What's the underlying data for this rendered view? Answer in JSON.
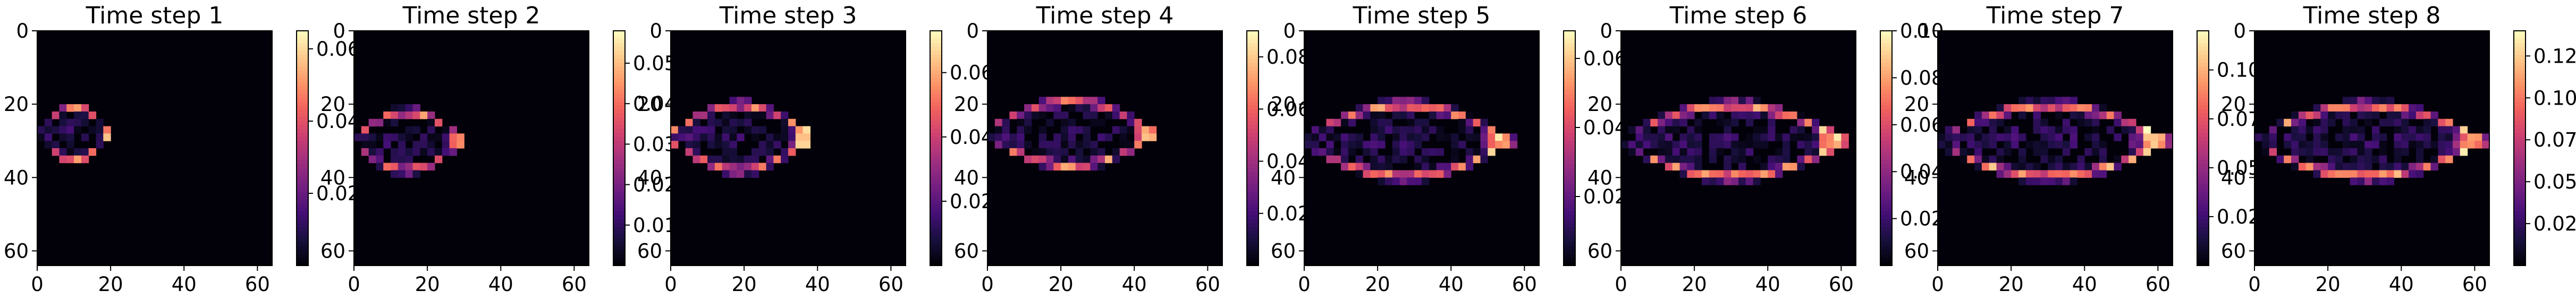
{
  "figure": {
    "colormap": "magma",
    "colormap_stops": [
      "#000004",
      "#180f3d",
      "#440f76",
      "#721f81",
      "#9e2f7f",
      "#cd4071",
      "#f1605d",
      "#fd9668",
      "#feca8d",
      "#fcfdbf"
    ]
  },
  "chart_data": [
    {
      "type": "heatmap",
      "title": "Time step 1",
      "x_ticks": [
        "0",
        "20",
        "40",
        "60"
      ],
      "y_ticks": [
        "0",
        "20",
        "40",
        "60"
      ],
      "xlim": [
        0,
        64
      ],
      "ylim": [
        64,
        0
      ],
      "grid_size": 64,
      "colorbar": {
        "min": 0.0,
        "max": 0.065,
        "ticks": [
          0.02,
          0.04,
          0.06
        ],
        "tick_labels": [
          "0.02",
          "0.04",
          "0.06"
        ]
      },
      "plume": {
        "tip_x": 20,
        "center_y": 28,
        "half_height": 8,
        "peak_value": 0.062
      }
    },
    {
      "type": "heatmap",
      "title": "Time step 2",
      "x_ticks": [
        "0",
        "20",
        "40",
        "60"
      ],
      "y_ticks": [
        "0",
        "20",
        "40",
        "60"
      ],
      "xlim": [
        0,
        64
      ],
      "ylim": [
        64,
        0
      ],
      "grid_size": 64,
      "colorbar": {
        "min": 0.0,
        "max": 0.058,
        "ticks": [
          0.01,
          0.02,
          0.03,
          0.04,
          0.05
        ],
        "tick_labels": [
          "0.01",
          "0.02",
          "0.03",
          "0.04",
          "0.05"
        ]
      },
      "plume": {
        "tip_x": 29,
        "center_y": 30,
        "half_height": 9,
        "peak_value": 0.055
      }
    },
    {
      "type": "heatmap",
      "title": "Time step 3",
      "x_ticks": [
        "0",
        "20",
        "40",
        "60"
      ],
      "y_ticks": [
        "0",
        "20",
        "40",
        "60"
      ],
      "xlim": [
        0,
        64
      ],
      "ylim": [
        64,
        0
      ],
      "grid_size": 64,
      "colorbar": {
        "min": 0.0,
        "max": 0.073,
        "ticks": [
          0.02,
          0.04,
          0.06
        ],
        "tick_labels": [
          "0.02",
          "0.04",
          "0.06"
        ]
      },
      "plume": {
        "tip_x": 37,
        "center_y": 29,
        "half_height": 10,
        "peak_value": 0.068
      }
    },
    {
      "type": "heatmap",
      "title": "Time step 4",
      "x_ticks": [
        "0",
        "20",
        "40",
        "60"
      ],
      "y_ticks": [
        "0",
        "20",
        "40",
        "60"
      ],
      "xlim": [
        0,
        64
      ],
      "ylim": [
        64,
        0
      ],
      "grid_size": 64,
      "colorbar": {
        "min": 0.0,
        "max": 0.09,
        "ticks": [
          0.02,
          0.04,
          0.06,
          0.08
        ],
        "tick_labels": [
          "0.02",
          "0.04",
          "0.06",
          "0.08"
        ]
      },
      "plume": {
        "tip_x": 45,
        "center_y": 28,
        "half_height": 10,
        "peak_value": 0.085
      }
    },
    {
      "type": "heatmap",
      "title": "Time step 5",
      "x_ticks": [
        "0",
        "20",
        "40",
        "60"
      ],
      "y_ticks": [
        "0",
        "20",
        "40",
        "60"
      ],
      "xlim": [
        0,
        64
      ],
      "ylim": [
        64,
        0
      ],
      "grid_size": 64,
      "colorbar": {
        "min": 0.0,
        "max": 0.068,
        "ticks": [
          0.02,
          0.04,
          0.06
        ],
        "tick_labels": [
          "0.02",
          "0.04",
          "0.06"
        ]
      },
      "plume": {
        "tip_x": 55,
        "center_y": 30,
        "half_height": 11,
        "peak_value": 0.065
      }
    },
    {
      "type": "heatmap",
      "title": "Time step 6",
      "x_ticks": [
        "0",
        "20",
        "40",
        "60"
      ],
      "y_ticks": [
        "0",
        "20",
        "40",
        "60"
      ],
      "xlim": [
        0,
        64
      ],
      "ylim": [
        64,
        0
      ],
      "grid_size": 64,
      "colorbar": {
        "min": 0.0,
        "max": 0.1,
        "ticks": [
          0.02,
          0.04,
          0.06,
          0.08,
          0.1
        ],
        "tick_labels": [
          "0.02",
          "0.04",
          "0.06",
          "0.08",
          "0.10"
        ]
      },
      "plume": {
        "tip_x": 60,
        "center_y": 30,
        "half_height": 11,
        "peak_value": 0.1
      }
    },
    {
      "type": "heatmap",
      "title": "Time step 7",
      "x_ticks": [
        "0",
        "20",
        "40",
        "60"
      ],
      "y_ticks": [
        "0",
        "20",
        "40",
        "60"
      ],
      "xlim": [
        0,
        64
      ],
      "ylim": [
        64,
        0
      ],
      "grid_size": 64,
      "colorbar": {
        "min": 0.0,
        "max": 0.12,
        "ticks": [
          0.025,
          0.05,
          0.075,
          0.1
        ],
        "tick_labels": [
          "0.025",
          "0.050",
          "0.075",
          "0.100"
        ]
      },
      "plume": {
        "tip_x": 61,
        "center_y": 30,
        "half_height": 11,
        "peak_value": 0.12
      }
    },
    {
      "type": "heatmap",
      "title": "Time step 8",
      "x_ticks": [
        "0",
        "20",
        "40",
        "60"
      ],
      "y_ticks": [
        "0",
        "20",
        "40",
        "60"
      ],
      "xlim": [
        0,
        64
      ],
      "ylim": [
        64,
        0
      ],
      "grid_size": 64,
      "colorbar": {
        "min": 0.0,
        "max": 0.14,
        "ticks": [
          0.025,
          0.05,
          0.075,
          0.1,
          0.125
        ],
        "tick_labels": [
          "0.025",
          "0.050",
          "0.075",
          "0.100",
          "0.125"
        ]
      },
      "plume": {
        "tip_x": 61,
        "center_y": 30,
        "half_height": 11,
        "peak_value": 0.135
      }
    }
  ]
}
